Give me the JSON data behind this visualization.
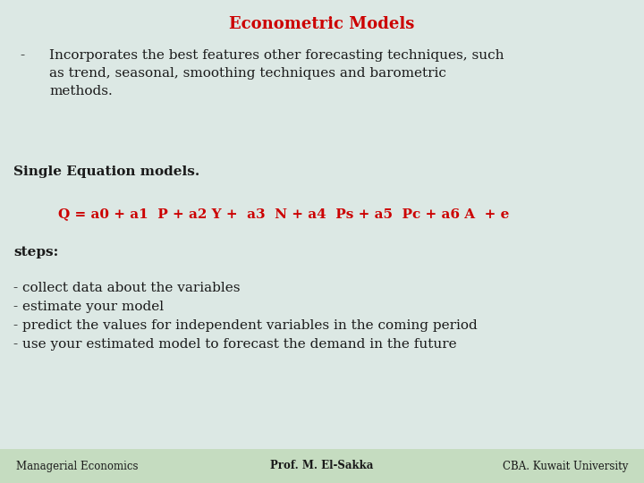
{
  "title": "Econometric Models",
  "title_color": "#cc0000",
  "title_fontsize": 13,
  "bg_color": "#dce8e4",
  "footer_bg": "#c5dcc0",
  "bullet_dash": "-",
  "bullet_text": "Incorporates the best features other forecasting techniques, such\nas trend, seasonal, smoothing techniques and barometric\nmethods.",
  "section1": "Single Equation models.",
  "equation": "Q = a0 + a1  P + a2 Y +  a3  N + a4  Ps + a5  Pc + a6 A  + e",
  "equation_color": "#cc0000",
  "section2": "steps:",
  "steps": [
    "- collect data about the variables",
    "- estimate your model",
    "- predict the values for independent variables in the coming period",
    "- use your estimated model to forecast the demand in the future"
  ],
  "footer_left": "Managerial Economics",
  "footer_center": "Prof. M. El-Sakka",
  "footer_right": "CBA. Kuwait University",
  "body_fontsize": 11,
  "section_fontsize": 11,
  "eq_fontsize": 11,
  "footer_fontsize": 8.5,
  "dark_text": "#1a1a1a"
}
